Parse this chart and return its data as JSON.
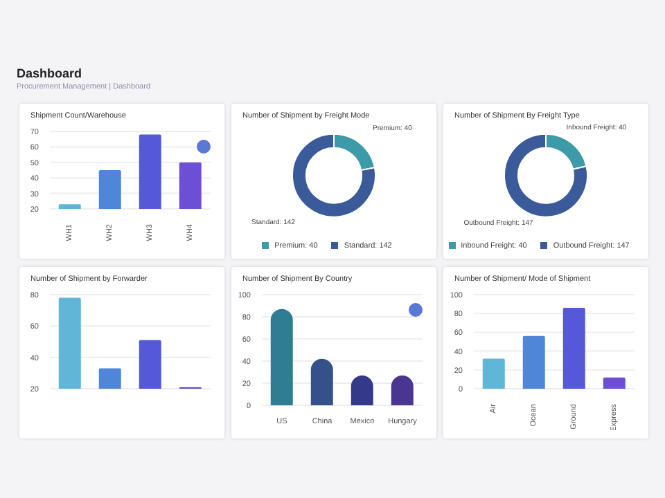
{
  "chart_data": [
    {
      "type": "other",
      "title": "Dashboard",
      "annotations": [
        "Procurement Management | Dashboard"
      ]
    },
    {
      "type": "bar",
      "title": "Shipment Count/Warehouse",
      "categories": [
        "WH1",
        "WH2",
        "WH3",
        "WH4"
      ],
      "values": [
        23,
        45,
        68,
        50
      ],
      "colors": [
        "#5fb6d6",
        "#4f86d8",
        "#5558d8",
        "#6d4fd6"
      ],
      "ylim": [
        20,
        70
      ],
      "yticks": [
        20,
        30,
        40,
        50,
        60,
        70
      ],
      "grid": "y",
      "legend": false
    },
    {
      "type": "donut",
      "title": "Number of Shipment by Freight Mode",
      "categories": [
        "Premium: 40",
        "Standard: 142"
      ],
      "values": [
        40,
        142
      ],
      "colors": [
        "#3d9aa8",
        "#3b5a9a"
      ],
      "legend": "bottom"
    },
    {
      "type": "donut",
      "title": "Number of Shipment By Freight Type",
      "categories": [
        "Inbound Freight: 40",
        "Outbound Freight: 147"
      ],
      "values": [
        40,
        147
      ],
      "colors": [
        "#3d9aa8",
        "#3b5a9a"
      ],
      "legend": "bottom"
    },
    {
      "type": "bar",
      "title": "Number of Shipment by Forwarder",
      "categories": [
        null,
        null,
        null,
        null
      ],
      "values": [
        78,
        33,
        51,
        21
      ],
      "colors": [
        "#5fb6d6",
        "#4f86d8",
        "#5558d8",
        "#6d4fd6"
      ],
      "ylim": [
        20,
        80
      ],
      "yticks": [
        20,
        40,
        60,
        80
      ],
      "grid": "y",
      "legend": false
    },
    {
      "type": "bar",
      "title": "Number of Shipment By Country",
      "categories": [
        "US",
        "China",
        "Mexico",
        "Hungary"
      ],
      "values": [
        87,
        42,
        27,
        27
      ],
      "colors": [
        "#2f7d92",
        "#34518a",
        "#35398a",
        "#4a3590"
      ],
      "ylim": [
        0,
        100
      ],
      "yticks": [
        0,
        20,
        40,
        60,
        80,
        100
      ],
      "grid": "y",
      "legend": false
    },
    {
      "type": "bar",
      "title": "Number of Shipment/ Mode of Shipment",
      "categories": [
        "Air",
        "Ocean",
        "Ground",
        "Express"
      ],
      "values": [
        32,
        56,
        86,
        12
      ],
      "colors": [
        "#5fb6d6",
        "#4f86d8",
        "#5558d8",
        "#6d4fd6"
      ],
      "ylim": [
        0,
        100
      ],
      "yticks": [
        0,
        20,
        40,
        60,
        80,
        100
      ],
      "grid": "y",
      "legend": false
    }
  ]
}
